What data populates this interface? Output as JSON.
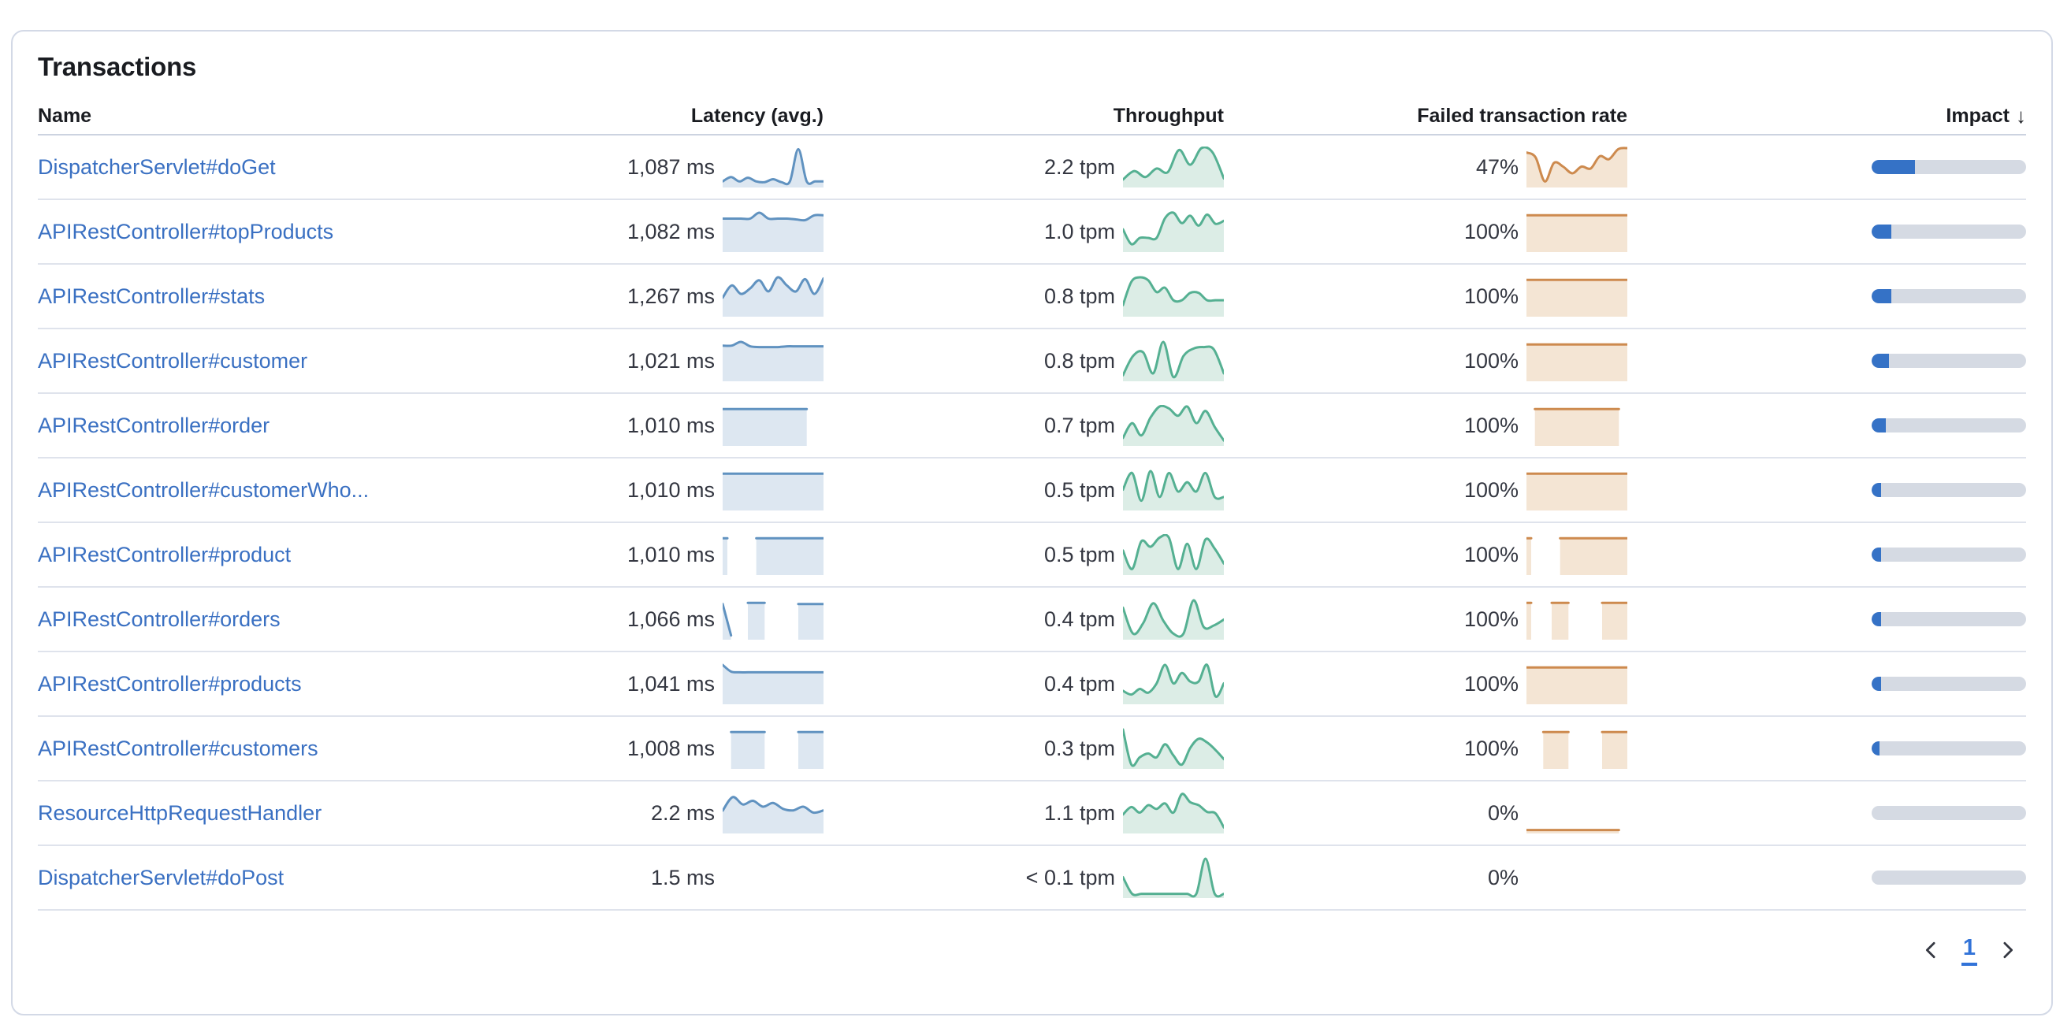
{
  "panel": {
    "title": "Transactions"
  },
  "table": {
    "headers": [
      {
        "label": "Name"
      },
      {
        "label": "Latency (avg.)"
      },
      {
        "label": "Throughput"
      },
      {
        "label": "Failed transaction rate"
      },
      {
        "label": "Impact",
        "sorted": "desc",
        "sort_indicator": "↓"
      }
    ],
    "rows": [
      {
        "name": "DispatcherServlet#doGet",
        "latency": "1,087 ms",
        "latency_trend": [
          0.1,
          0.22,
          0.1,
          0.2,
          0.1,
          0.08,
          0.16,
          0.08,
          0.1,
          0.97,
          0.1,
          0.1,
          0.1
        ],
        "throughput": "2.2 tpm",
        "throughput_trend": [
          0.15,
          0.38,
          0.22,
          0.45,
          0.35,
          0.95,
          0.55,
          1.0,
          0.88,
          0.18
        ],
        "failed_rate": "47%",
        "failed_trend": [
          0.88,
          0.75,
          0.1,
          0.6,
          0.5,
          0.32,
          0.5,
          0.45,
          0.78,
          0.7,
          0.97,
          1.0
        ],
        "impact_pct": 28
      },
      {
        "name": "APIRestController#topProducts",
        "latency": "1,082 ms",
        "latency_trend": [
          0.84,
          0.84,
          0.84,
          0.84,
          1.0,
          0.84,
          0.84,
          0.84,
          0.82,
          0.8,
          0.93,
          0.93
        ],
        "throughput": "1.0 tpm",
        "throughput_trend": [
          0.55,
          0.15,
          0.32,
          0.32,
          0.32,
          0.85,
          1.0,
          0.72,
          0.92,
          0.65,
          0.95,
          0.7,
          0.78
        ],
        "failed_rate": "100%",
        "failed_trend": [
          0.93,
          0.93,
          0.93,
          0.93,
          0.93,
          0.93,
          0.93,
          0.93,
          0.93,
          0.93,
          0.93,
          0.93,
          0.93
        ],
        "impact_pct": 13
      },
      {
        "name": "APIRestController#stats",
        "latency": "1,267 ms",
        "latency_trend": [
          0.45,
          0.78,
          0.55,
          0.7,
          0.92,
          0.62,
          1.0,
          0.78,
          0.62,
          0.95,
          0.55,
          0.97
        ],
        "throughput": "0.8 tpm",
        "throughput_trend": [
          0.25,
          0.88,
          1.0,
          0.92,
          0.6,
          0.72,
          0.38,
          0.38,
          0.58,
          0.58,
          0.38,
          0.38,
          0.38
        ],
        "failed_rate": "100%",
        "failed_trend": [
          0.93,
          0.93,
          0.93,
          0.93,
          0.93,
          0.93,
          0.93,
          0.93,
          0.93,
          0.93,
          0.93,
          0.93,
          0.93
        ],
        "impact_pct": 13
      },
      {
        "name": "APIRestController#customer",
        "latency": "1,021 ms",
        "latency_trend": [
          0.9,
          0.9,
          1.0,
          0.88,
          0.86,
          0.86,
          0.86,
          0.88,
          0.88,
          0.88,
          0.88,
          0.88
        ],
        "throughput": "0.8 tpm",
        "throughput_trend": [
          0.1,
          0.62,
          0.72,
          0.15,
          1.0,
          0.05,
          0.62,
          0.82,
          0.86,
          0.8,
          0.15
        ],
        "failed_rate": "100%",
        "failed_trend": [
          0.93,
          0.93,
          0.93,
          0.93,
          0.93,
          0.93,
          0.93,
          0.93,
          0.93,
          0.93,
          0.93,
          0.93,
          0.93
        ],
        "impact_pct": 11
      },
      {
        "name": "APIRestController#order",
        "latency": "1,010 ms",
        "latency_trend": [
          0.93,
          0.93,
          0.93,
          0.93,
          0.93,
          0.93,
          0.93,
          0.93,
          0.93,
          0.93,
          0.93,
          null,
          null
        ],
        "throughput": "0.7 tpm",
        "throughput_trend": [
          0.15,
          0.55,
          0.22,
          0.7,
          1.0,
          0.95,
          0.75,
          1.0,
          0.55,
          0.88,
          0.45,
          0.08
        ],
        "failed_rate": "100%",
        "failed_trend": [
          null,
          0.93,
          0.93,
          0.93,
          0.93,
          0.93,
          0.93,
          0.93,
          0.93,
          0.93,
          0.93,
          0.93,
          null
        ],
        "impact_pct": 9
      },
      {
        "name": "APIRestController#customerWho...",
        "latency": "1,010 ms",
        "latency_trend": [
          0.93,
          0.93,
          0.93,
          0.93,
          0.93,
          0.93,
          0.93,
          0.93,
          0.93,
          0.93,
          0.93,
          0.93,
          0.93
        ],
        "throughput": "0.5 tpm",
        "throughput_trend": [
          0.5,
          0.95,
          0.2,
          1.0,
          0.3,
          0.95,
          0.45,
          0.7,
          0.45,
          0.95,
          0.3,
          0.3
        ],
        "failed_rate": "100%",
        "failed_trend": [
          0.93,
          0.93,
          0.93,
          0.93,
          0.93,
          0.93,
          0.93,
          0.93,
          0.93,
          0.93,
          0.93,
          0.93,
          0.93
        ],
        "impact_pct": 6
      },
      {
        "name": "APIRestController#product",
        "latency": "1,010 ms",
        "latency_trend": [
          0.93,
          null,
          null,
          null,
          0.93,
          0.93,
          0.93,
          0.93,
          0.93,
          0.93,
          0.93,
          0.93,
          0.93
        ],
        "throughput": "0.5 tpm",
        "throughput_trend": [
          0.6,
          0.1,
          0.85,
          0.7,
          0.95,
          0.95,
          0.1,
          0.78,
          0.1,
          0.9,
          0.65,
          0.25
        ],
        "failed_rate": "100%",
        "failed_trend": [
          0.93,
          null,
          null,
          null,
          0.93,
          0.93,
          0.93,
          0.93,
          0.93,
          0.93,
          0.93,
          0.93,
          0.93
        ],
        "impact_pct": 6
      },
      {
        "name": "APIRestController#orders",
        "latency": "1,066 ms",
        "latency_trend": [
          0.9,
          0.05,
          null,
          0.93,
          0.93,
          0.93,
          null,
          null,
          null,
          0.9,
          0.9,
          0.9,
          0.9
        ],
        "throughput": "0.4 tpm",
        "throughput_trend": [
          0.8,
          0.1,
          0.38,
          0.92,
          0.45,
          0.1,
          0.1,
          1.0,
          0.28,
          0.32,
          0.48
        ],
        "failed_rate": "100%",
        "failed_trend": [
          0.93,
          null,
          null,
          0.93,
          0.93,
          0.93,
          null,
          null,
          null,
          0.93,
          0.93,
          0.93,
          0.93
        ],
        "impact_pct": 6
      },
      {
        "name": "APIRestController#products",
        "latency": "1,041 ms",
        "latency_trend": [
          1.0,
          0.82,
          0.8,
          0.8,
          0.8,
          0.8,
          0.8,
          0.8,
          0.8,
          0.8,
          0.8,
          0.8,
          0.8
        ],
        "throughput": "0.4 tpm",
        "throughput_trend": [
          0.3,
          0.2,
          0.35,
          0.25,
          0.5,
          1.0,
          0.5,
          0.78,
          0.55,
          0.55,
          1.0,
          0.15,
          0.5
        ],
        "failed_rate": "100%",
        "failed_trend": [
          0.93,
          0.93,
          0.93,
          0.93,
          0.93,
          0.93,
          0.93,
          0.93,
          0.93,
          0.93,
          0.93,
          0.93,
          0.93
        ],
        "impact_pct": 6
      },
      {
        "name": "APIRestController#customers",
        "latency": "1,008 ms",
        "latency_trend": [
          null,
          0.93,
          0.93,
          0.93,
          0.93,
          0.93,
          null,
          null,
          null,
          0.93,
          0.93,
          0.93,
          0.93
        ],
        "throughput": "0.3 tpm",
        "throughput_trend": [
          1.0,
          0.05,
          0.25,
          0.35,
          0.25,
          0.6,
          0.3,
          0.05,
          0.5,
          0.75,
          0.65,
          0.45,
          0.2
        ],
        "failed_rate": "100%",
        "failed_trend": [
          null,
          null,
          0.93,
          0.93,
          0.93,
          0.93,
          null,
          null,
          null,
          0.93,
          0.93,
          0.93,
          0.93
        ],
        "impact_pct": 5
      },
      {
        "name": "ResourceHttpRequestHandler",
        "latency": "2.2 ms",
        "latency_trend": [
          0.55,
          0.92,
          0.72,
          0.82,
          0.66,
          0.76,
          0.6,
          0.56,
          0.66,
          0.5,
          0.56
        ],
        "throughput": "1.1 tpm",
        "throughput_trend": [
          0.45,
          0.65,
          0.5,
          0.7,
          0.6,
          0.75,
          0.5,
          1.0,
          0.78,
          0.7,
          0.52,
          0.48,
          0.1
        ],
        "failed_rate": "0%",
        "failed_trend": [
          0.03,
          0.03,
          0.03,
          0.03,
          0.03,
          0.03,
          0.03,
          0.03,
          0.03,
          0.03,
          0.03,
          0.03,
          null
        ],
        "impact_pct": 0
      },
      {
        "name": "DispatcherServlet#doPost",
        "latency": "1.5 ms",
        "latency_trend": null,
        "throughput": "< 0.1 tpm",
        "throughput_trend": [
          0.5,
          0.05,
          0.05,
          0.05,
          0.05,
          0.05,
          0.05,
          0.05,
          0.05,
          1.0,
          0.05,
          0.05
        ],
        "failed_rate": "0%",
        "failed_trend": null,
        "impact_pct": 0
      }
    ]
  },
  "pagination": {
    "page": "1"
  },
  "colors": {
    "link": "#3a70c2",
    "text": "#343741",
    "heading": "#1a1c21",
    "border": "#d3d9e6",
    "row_line": "#dfe3ec",
    "header_line": "#ccd3e0",
    "impact_fill": "#3572c6",
    "impact_track": "#d5dae3",
    "page_number": "#3273d8",
    "chevron": "#343741",
    "blue": {
      "stroke": "#6092c0",
      "fill": "#dde7f1"
    },
    "green": {
      "stroke": "#55b092",
      "fill": "#dcede6"
    },
    "orange": {
      "stroke": "#cd8a4e",
      "fill": "#f4e5d4"
    }
  }
}
